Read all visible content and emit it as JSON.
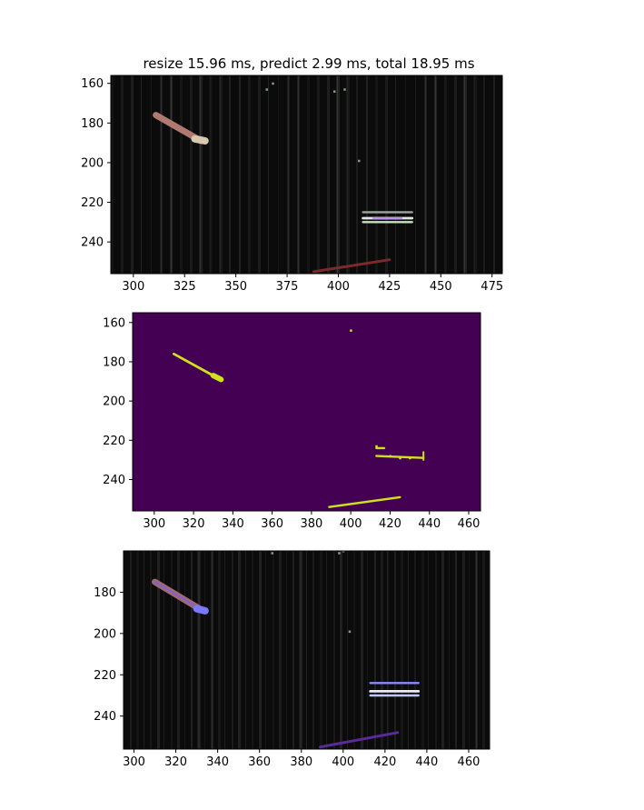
{
  "chart_data": [
    {
      "type": "heatmap",
      "title": "resize 15.96 ms, predict 2.99 ms, total 18.95 ms",
      "xlim": [
        289,
        480
      ],
      "ylim": [
        256,
        156
      ],
      "xticks": [
        300,
        325,
        350,
        375,
        400,
        425,
        450,
        475
      ],
      "yticks": [
        160,
        180,
        200,
        220,
        240
      ],
      "background": "#0b0b0b",
      "strokes": [
        {
          "points": [
            [
              311,
              176
            ],
            [
              333,
              189
            ]
          ],
          "color": "#b07a70",
          "width": 3.5
        },
        {
          "points": [
            [
              330,
              188
            ],
            [
              335,
              189
            ]
          ],
          "color": "#d8c8b0",
          "width": 4
        },
        {
          "points": [
            [
              388,
              255
            ],
            [
              425,
              249
            ]
          ],
          "color": "#7a2a2a",
          "width": 1.5
        },
        {
          "points": [
            [
              412,
              225
            ],
            [
              436,
              225
            ]
          ],
          "color": "#9aa69a",
          "width": 1.2
        },
        {
          "points": [
            [
              412,
              228
            ],
            [
              436,
              228
            ]
          ],
          "color": "#e0e8e0",
          "width": 1.4
        },
        {
          "points": [
            [
              412,
              230
            ],
            [
              436,
              230
            ]
          ],
          "color": "#c8e0c0",
          "width": 1.2
        },
        {
          "points": [
            [
              417,
              228
            ],
            [
              431,
              228
            ]
          ],
          "color": "#c080ff",
          "width": 0.9
        }
      ],
      "specks": [
        [
          368,
          160
        ],
        [
          365,
          163
        ],
        [
          398,
          164
        ],
        [
          410,
          199
        ],
        [
          403,
          163
        ]
      ],
      "colormap": ""
    },
    {
      "type": "heatmap",
      "title": "",
      "xlim": [
        289,
        466
      ],
      "ylim": [
        256,
        155
      ],
      "xticks": [
        300,
        320,
        340,
        360,
        380,
        400,
        420,
        440,
        460
      ],
      "yticks": [
        160,
        180,
        200,
        220,
        240
      ],
      "background": "#440154",
      "foreground": "#cde11d",
      "strokes": [
        {
          "points": [
            [
              310,
              176
            ],
            [
              330,
              187
            ]
          ],
          "width": 1.4
        },
        {
          "points": [
            [
              330,
              187
            ],
            [
              334,
              189
            ]
          ],
          "width": 3
        },
        {
          "points": [
            [
              389,
              254
            ],
            [
              425,
              249
            ]
          ],
          "width": 1.2
        },
        {
          "points": [
            [
              413,
              224
            ],
            [
              417,
              224
            ]
          ],
          "width": 1.2
        },
        {
          "points": [
            [
              413,
              228
            ],
            [
              437,
              229
            ]
          ],
          "width": 1.2
        },
        {
          "points": [
            [
              437,
              226
            ],
            [
              437,
              230
            ]
          ],
          "width": 1
        }
      ],
      "specks": [
        [
          400,
          164
        ],
        [
          413,
          223
        ],
        [
          420,
          228
        ],
        [
          425,
          229
        ],
        [
          430,
          229
        ]
      ]
    },
    {
      "type": "heatmap",
      "title": "",
      "xlim": [
        295,
        470
      ],
      "ylim": [
        256,
        160
      ],
      "xticks": [
        300,
        320,
        340,
        360,
        380,
        400,
        420,
        440,
        460
      ],
      "yticks": [
        180,
        200,
        220,
        240
      ],
      "background": "#0b0b0b",
      "strokes": [
        {
          "points": [
            [
              310,
              175
            ],
            [
              333,
              189
            ]
          ],
          "color": "#a06a70",
          "width": 3.5
        },
        {
          "points": [
            [
              310,
              175
            ],
            [
              333,
              189
            ]
          ],
          "color": "#7a60e0",
          "width": 0.9
        },
        {
          "points": [
            [
              330,
              188
            ],
            [
              334,
              189
            ]
          ],
          "color": "#7a7aff",
          "width": 4
        },
        {
          "points": [
            [
              389,
              255
            ],
            [
              426,
              248
            ]
          ],
          "color": "#5a2a9a",
          "width": 1.5
        },
        {
          "points": [
            [
              413,
              224
            ],
            [
              436,
              224
            ]
          ],
          "color": "#8a8aff",
          "width": 1.2
        },
        {
          "points": [
            [
              413,
              228
            ],
            [
              436,
              228
            ]
          ],
          "color": "#e8e8ff",
          "width": 1.4
        },
        {
          "points": [
            [
              413,
              230
            ],
            [
              436,
              230
            ]
          ],
          "color": "#c0c8ff",
          "width": 1.2
        }
      ],
      "specks": [
        [
          398,
          161
        ],
        [
          400,
          160
        ],
        [
          366,
          161
        ],
        [
          403,
          199
        ]
      ]
    }
  ]
}
